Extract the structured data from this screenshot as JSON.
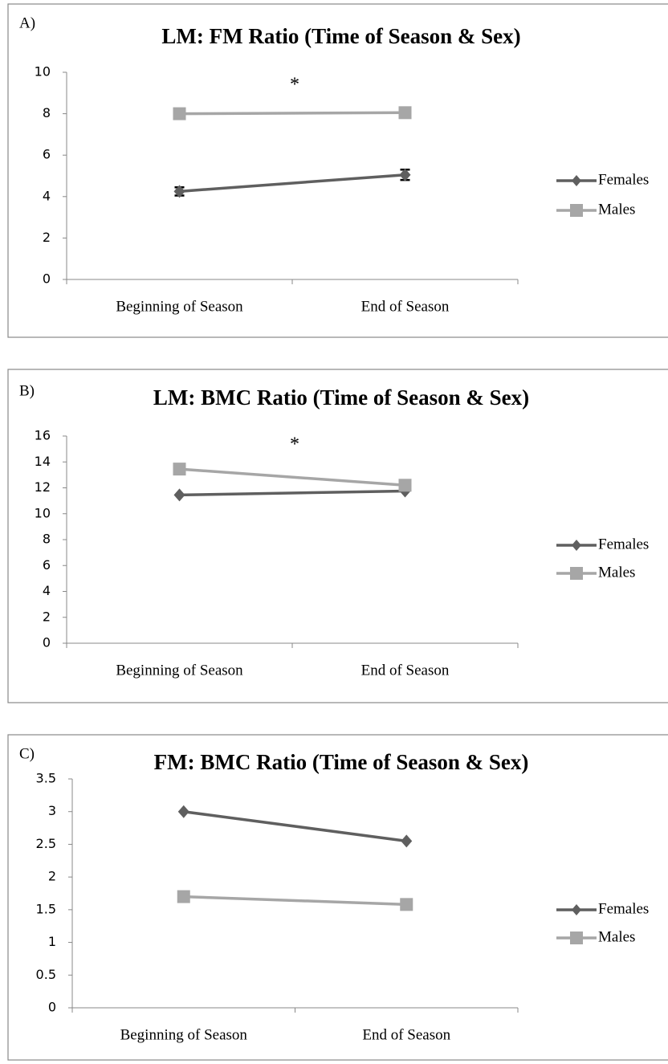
{
  "chart_data": [
    {
      "type": "line",
      "panel_label": "A)",
      "title": "LM: FM Ratio (Time of Season & Sex)",
      "annotation": "*",
      "categories": [
        "Beginning of Season",
        "End of Season"
      ],
      "series": [
        {
          "name": "Females",
          "color": "#5f5f5f",
          "marker": "diamond",
          "values": [
            4.25,
            5.05
          ],
          "errors": [
            0.2,
            0.25
          ]
        },
        {
          "name": "Males",
          "color": "#a6a6a6",
          "marker": "square",
          "values": [
            8.0,
            8.05
          ],
          "errors": [
            0.15,
            0.15
          ]
        }
      ],
      "ylim": [
        0,
        10
      ],
      "yticks": [
        0,
        2,
        4,
        6,
        8,
        10
      ],
      "grid": false,
      "legend": "right"
    },
    {
      "type": "line",
      "panel_label": "B)",
      "title": "LM: BMC Ratio (Time of Season & Sex)",
      "annotation": "*",
      "categories": [
        "Beginning of Season",
        "End of Season"
      ],
      "series": [
        {
          "name": "Females",
          "color": "#5f5f5f",
          "marker": "diamond",
          "values": [
            11.45,
            11.75
          ]
        },
        {
          "name": "Males",
          "color": "#a6a6a6",
          "marker": "square",
          "values": [
            13.45,
            12.2
          ]
        }
      ],
      "ylim": [
        0,
        16
      ],
      "yticks": [
        0,
        2,
        4,
        6,
        8,
        10,
        12,
        14,
        16
      ],
      "grid": false,
      "legend": "right"
    },
    {
      "type": "line",
      "panel_label": "C)",
      "title": "FM: BMC Ratio (Time of Season & Sex)",
      "categories": [
        "Beginning of Season",
        "End of Season"
      ],
      "series": [
        {
          "name": "Females",
          "color": "#5f5f5f",
          "marker": "diamond",
          "values": [
            3.0,
            2.55
          ]
        },
        {
          "name": "Males",
          "color": "#a6a6a6",
          "marker": "square",
          "values": [
            1.7,
            1.58
          ]
        }
      ],
      "ylim": [
        0,
        3.5
      ],
      "yticks": [
        0,
        0.5,
        1,
        1.5,
        2,
        2.5,
        3,
        3.5
      ],
      "grid": false,
      "legend": "right"
    }
  ]
}
